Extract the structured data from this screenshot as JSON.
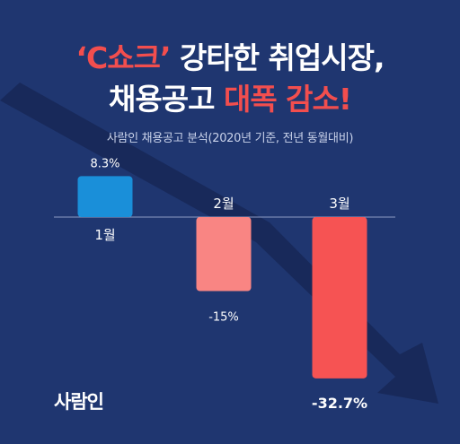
{
  "headline": {
    "line1": {
      "accent": "‘C쇼크’",
      "rest": " 강타한 취업시장,"
    },
    "line2": {
      "lead": "채용공고 ",
      "accent": "대폭 감소!"
    }
  },
  "subtitle": "사람인 채용공고 분석(2020년 기준, 전년 동월대비)",
  "brand": "사람인",
  "colors": {
    "background": "#1f3670",
    "trend_arrow": "#18295a",
    "accent": "#f24e4e",
    "bar_jan": "#1a8fd9",
    "bar_feb": "#f98583",
    "bar_mar": "#f65353"
  },
  "chart_data": {
    "type": "bar",
    "categories": [
      "1월",
      "2월",
      "3월"
    ],
    "values": [
      8.3,
      -15,
      -32.7
    ],
    "value_labels": [
      "8.3%",
      "-15%",
      "-32.7%"
    ],
    "bar_colors": [
      "#1a8fd9",
      "#f98583",
      "#f65353"
    ],
    "ylim": [
      -40,
      10
    ],
    "grid": false,
    "title": "",
    "xlabel": "",
    "ylabel": ""
  }
}
